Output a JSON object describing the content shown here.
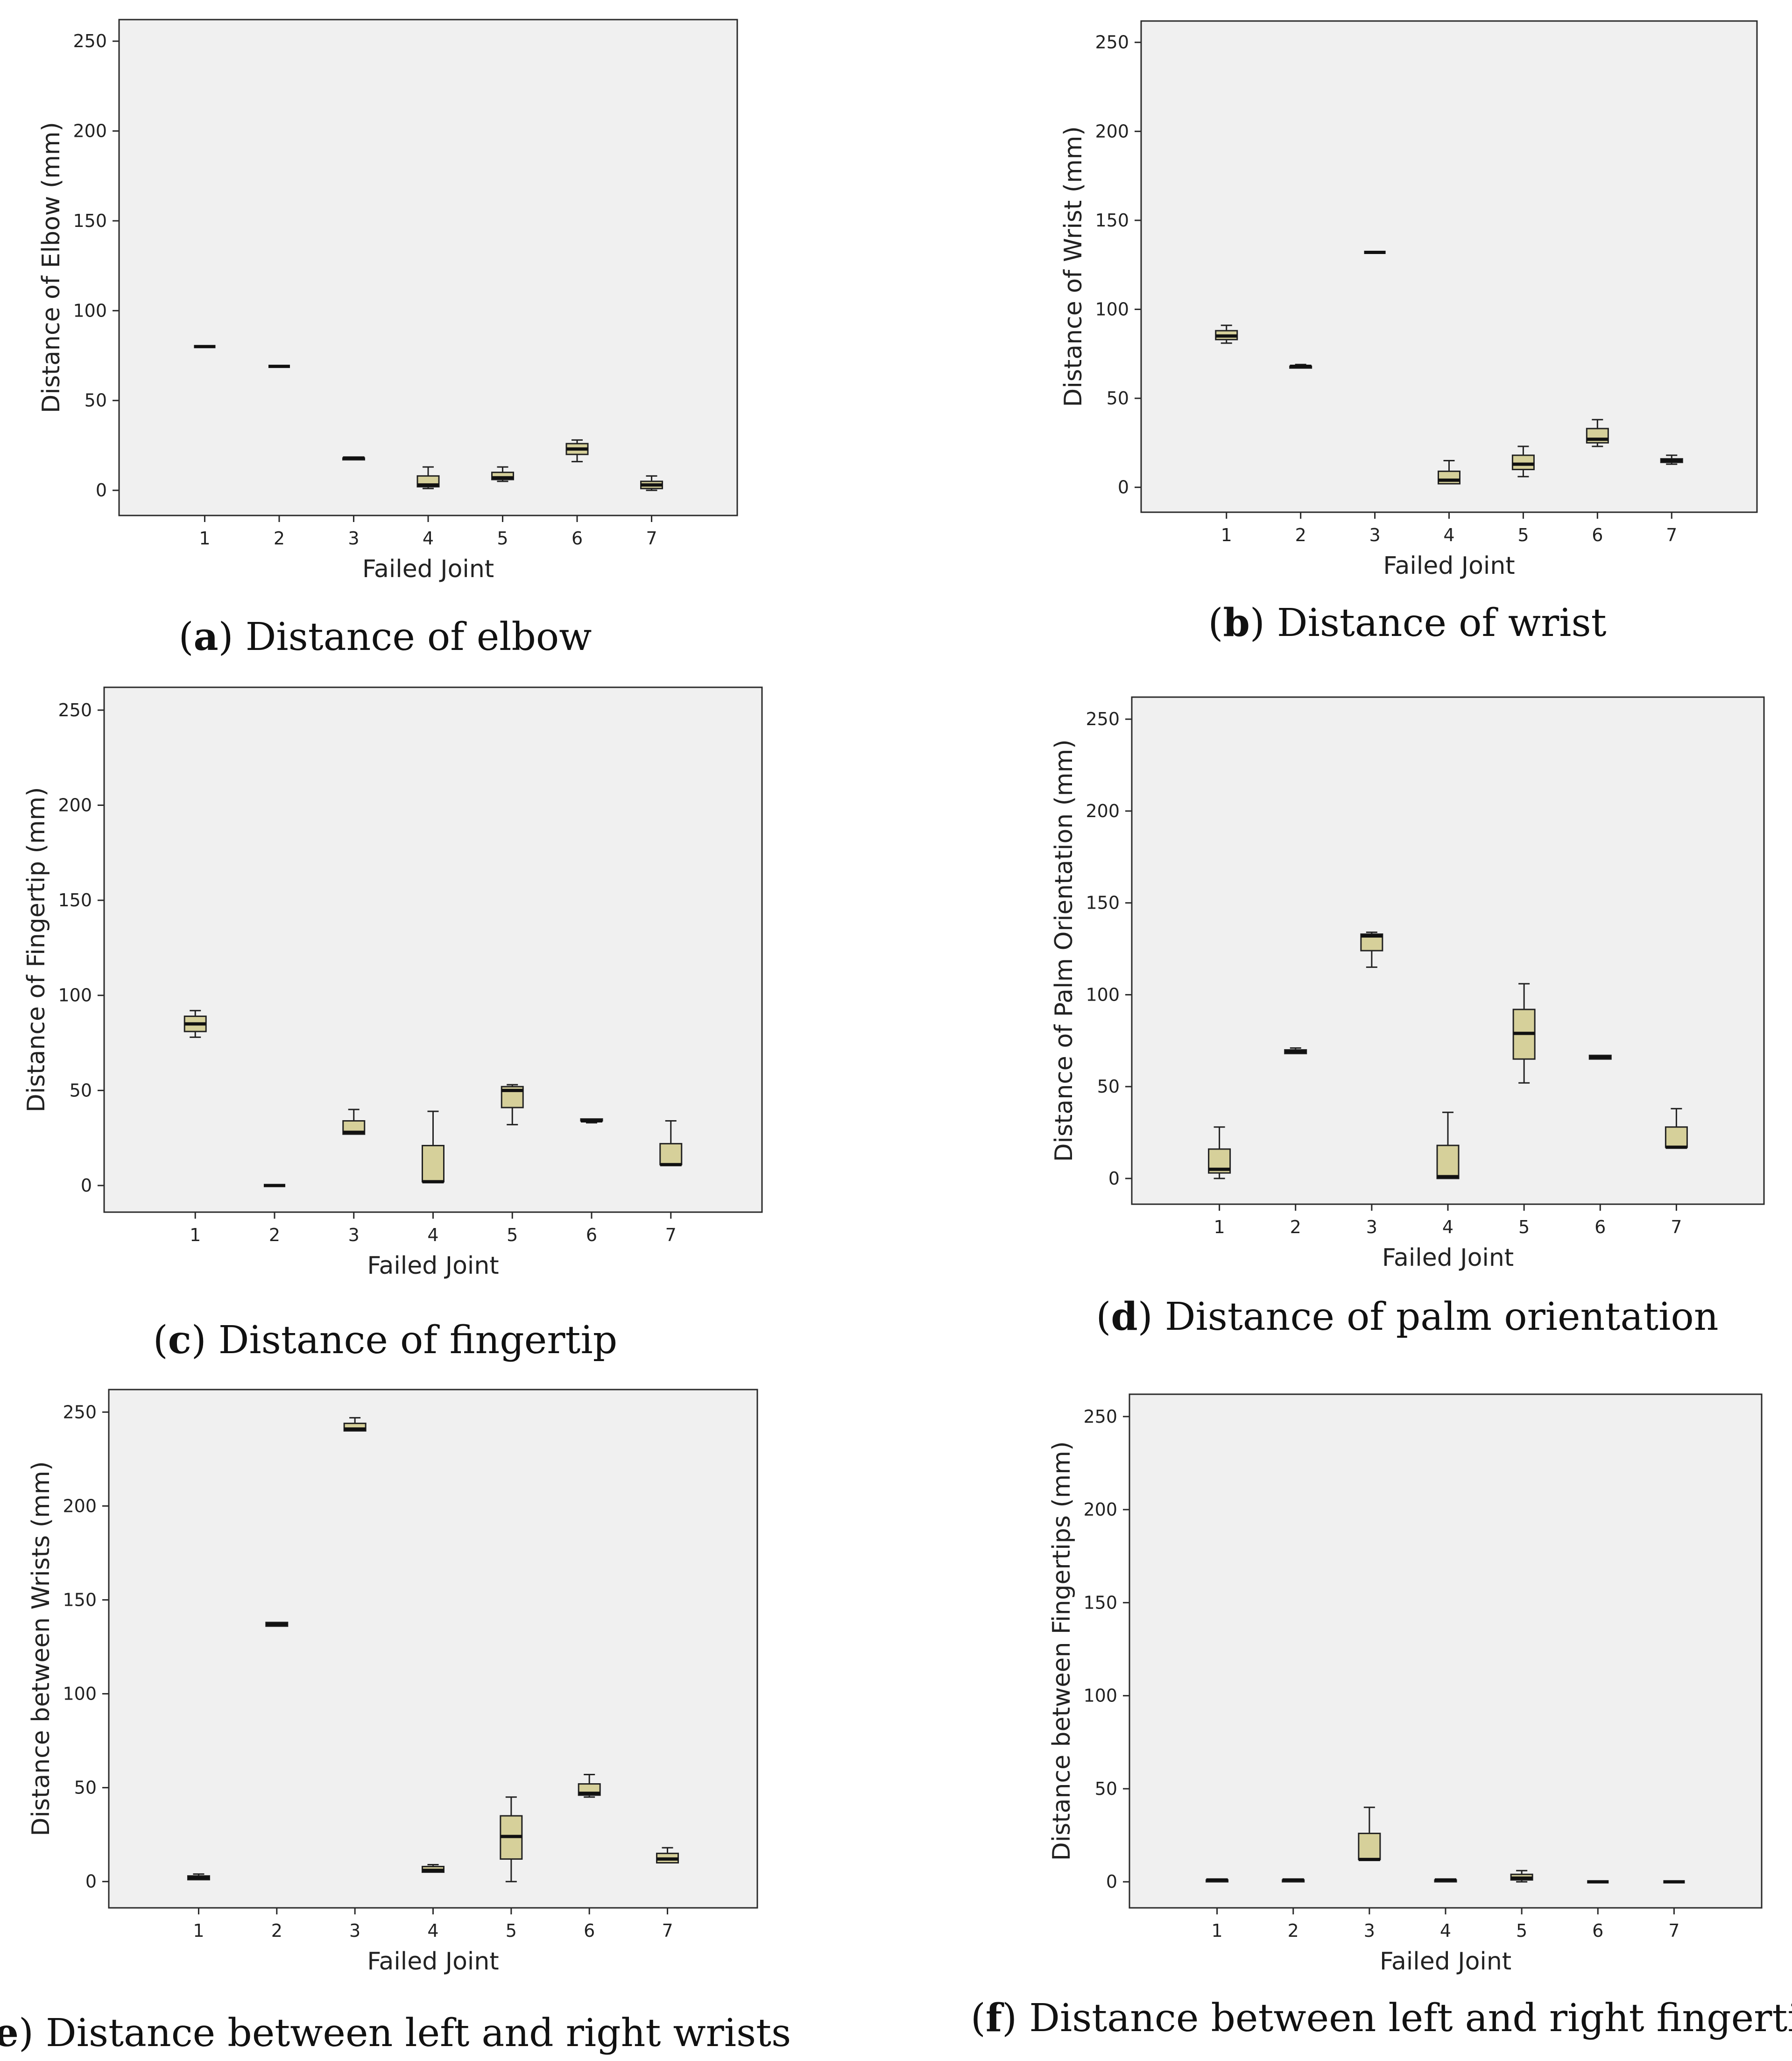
{
  "colors": {
    "box_fill": "#d6d09a",
    "plot_bg": "#f0f0f0"
  },
  "chart_data": [
    {
      "id": "a",
      "type": "boxplot",
      "caption_letter": "a",
      "caption_text": "Distance of elbow",
      "xlabel": "Failed Joint",
      "ylabel": "Distance of Elbow (mm)",
      "ylim": [
        -14,
        262
      ],
      "yticks": [
        0,
        50,
        100,
        150,
        200,
        250
      ],
      "categories": [
        "1",
        "2",
        "3",
        "4",
        "5",
        "6",
        "7"
      ],
      "boxes": [
        {
          "min": 80,
          "q1": 80,
          "median": 80,
          "q3": 80,
          "max": 80
        },
        {
          "min": 69,
          "q1": 69,
          "median": 69,
          "q3": 69,
          "max": 69
        },
        {
          "min": 17,
          "q1": 17,
          "median": 18,
          "q3": 18,
          "max": 18
        },
        {
          "min": 1,
          "q1": 2,
          "median": 3,
          "q3": 8,
          "max": 13
        },
        {
          "min": 5,
          "q1": 6,
          "median": 7,
          "q3": 10,
          "max": 13
        },
        {
          "min": 16,
          "q1": 20,
          "median": 23,
          "q3": 26,
          "max": 28
        },
        {
          "min": 0,
          "q1": 1,
          "median": 3,
          "q3": 5,
          "max": 8
        }
      ]
    },
    {
      "id": "b",
      "type": "boxplot",
      "caption_letter": "b",
      "caption_text": "Distance of wrist",
      "xlabel": "Failed Joint",
      "ylabel": "Distance of Wrist (mm)",
      "ylim": [
        -14,
        262
      ],
      "yticks": [
        0,
        50,
        100,
        150,
        200,
        250
      ],
      "categories": [
        "1",
        "2",
        "3",
        "4",
        "5",
        "6",
        "7"
      ],
      "boxes": [
        {
          "min": 81,
          "q1": 83,
          "median": 85,
          "q3": 88,
          "max": 91
        },
        {
          "min": 67,
          "q1": 67,
          "median": 68,
          "q3": 68,
          "max": 69
        },
        {
          "min": 132,
          "q1": 132,
          "median": 132,
          "q3": 132,
          "max": 132
        },
        {
          "min": 2,
          "q1": 2,
          "median": 4,
          "q3": 9,
          "max": 15
        },
        {
          "min": 6,
          "q1": 10,
          "median": 13,
          "q3": 18,
          "max": 23
        },
        {
          "min": 23,
          "q1": 25,
          "median": 27,
          "q3": 33,
          "max": 38
        },
        {
          "min": 13,
          "q1": 14,
          "median": 15,
          "q3": 16,
          "max": 18
        }
      ]
    },
    {
      "id": "c",
      "type": "boxplot",
      "caption_letter": "c",
      "caption_text": "Distance of fingertip",
      "xlabel": "Failed Joint",
      "ylabel": "Distance of Fingertip (mm)",
      "ylim": [
        -14,
        262
      ],
      "yticks": [
        0,
        50,
        100,
        150,
        200,
        250
      ],
      "categories": [
        "1",
        "2",
        "3",
        "4",
        "5",
        "6",
        "7"
      ],
      "boxes": [
        {
          "min": 78,
          "q1": 81,
          "median": 85,
          "q3": 89,
          "max": 92
        },
        {
          "min": 0,
          "q1": 0,
          "median": 0,
          "q3": 0,
          "max": 0
        },
        {
          "min": 27,
          "q1": 27,
          "median": 28,
          "q3": 34,
          "max": 40
        },
        {
          "min": 2,
          "q1": 2,
          "median": 2,
          "q3": 21,
          "max": 39
        },
        {
          "min": 32,
          "q1": 41,
          "median": 50,
          "q3": 52,
          "max": 53
        },
        {
          "min": 33,
          "q1": 34,
          "median": 34,
          "q3": 35,
          "max": 35
        },
        {
          "min": 11,
          "q1": 11,
          "median": 11,
          "q3": 22,
          "max": 34
        }
      ]
    },
    {
      "id": "d",
      "type": "boxplot",
      "caption_letter": "d",
      "caption_text": "Distance of palm orientation",
      "xlabel": "Failed Joint",
      "ylabel": "Distance of Palm Orientation (mm)",
      "ylim": [
        -14,
        262
      ],
      "yticks": [
        0,
        50,
        100,
        150,
        200,
        250
      ],
      "categories": [
        "1",
        "2",
        "3",
        "4",
        "5",
        "6",
        "7"
      ],
      "boxes": [
        {
          "min": 0,
          "q1": 3,
          "median": 5,
          "q3": 16,
          "max": 28
        },
        {
          "min": 68,
          "q1": 68,
          "median": 69,
          "q3": 70,
          "max": 71
        },
        {
          "min": 115,
          "q1": 124,
          "median": 132,
          "q3": 133,
          "max": 134
        },
        {
          "min": 0,
          "q1": 0,
          "median": 1,
          "q3": 18,
          "max": 36
        },
        {
          "min": 52,
          "q1": 65,
          "median": 79,
          "q3": 92,
          "max": 106
        },
        {
          "min": 65,
          "q1": 65,
          "median": 66,
          "q3": 67,
          "max": 67
        },
        {
          "min": 17,
          "q1": 17,
          "median": 17,
          "q3": 28,
          "max": 38
        }
      ]
    },
    {
      "id": "e",
      "type": "boxplot",
      "caption_letter": "e",
      "caption_text": "Distance between left and right wrists",
      "xlabel": "Failed Joint",
      "ylabel": "Distance between Wrists (mm)",
      "ylim": [
        -14,
        262
      ],
      "yticks": [
        0,
        50,
        100,
        150,
        200,
        250
      ],
      "categories": [
        "1",
        "2",
        "3",
        "4",
        "5",
        "6",
        "7"
      ],
      "boxes": [
        {
          "min": 1,
          "q1": 1,
          "median": 2,
          "q3": 3,
          "max": 4
        },
        {
          "min": 136,
          "q1": 136,
          "median": 137,
          "q3": 138,
          "max": 138
        },
        {
          "min": 240,
          "q1": 240,
          "median": 241,
          "q3": 244,
          "max": 247
        },
        {
          "min": 5,
          "q1": 5,
          "median": 6,
          "q3": 8,
          "max": 9
        },
        {
          "min": 0,
          "q1": 12,
          "median": 24,
          "q3": 35,
          "max": 45
        },
        {
          "min": 45,
          "q1": 46,
          "median": 47,
          "q3": 52,
          "max": 57
        },
        {
          "min": 10,
          "q1": 10,
          "median": 12,
          "q3": 15,
          "max": 18
        }
      ]
    },
    {
      "id": "f",
      "type": "boxplot",
      "caption_letter": "f",
      "caption_text": "Distance between left and right fingertips",
      "xlabel": "Failed Joint",
      "ylabel": "Distance between Fingertips (mm)",
      "ylim": [
        -14,
        262
      ],
      "yticks": [
        0,
        50,
        100,
        150,
        200,
        250
      ],
      "categories": [
        "1",
        "2",
        "3",
        "4",
        "5",
        "6",
        "7"
      ],
      "boxes": [
        {
          "min": 0,
          "q1": 0,
          "median": 1,
          "q3": 1,
          "max": 1
        },
        {
          "min": 0,
          "q1": 0,
          "median": 1,
          "q3": 1,
          "max": 1
        },
        {
          "min": 12,
          "q1": 12,
          "median": 12,
          "q3": 26,
          "max": 40
        },
        {
          "min": 0,
          "q1": 0,
          "median": 1,
          "q3": 1,
          "max": 1
        },
        {
          "min": 0,
          "q1": 1,
          "median": 2,
          "q3": 4,
          "max": 6
        },
        {
          "min": 0,
          "q1": 0,
          "median": 0,
          "q3": 0,
          "max": 0
        },
        {
          "min": 0,
          "q1": 0,
          "median": 0,
          "q3": 0,
          "max": 0
        }
      ]
    }
  ]
}
